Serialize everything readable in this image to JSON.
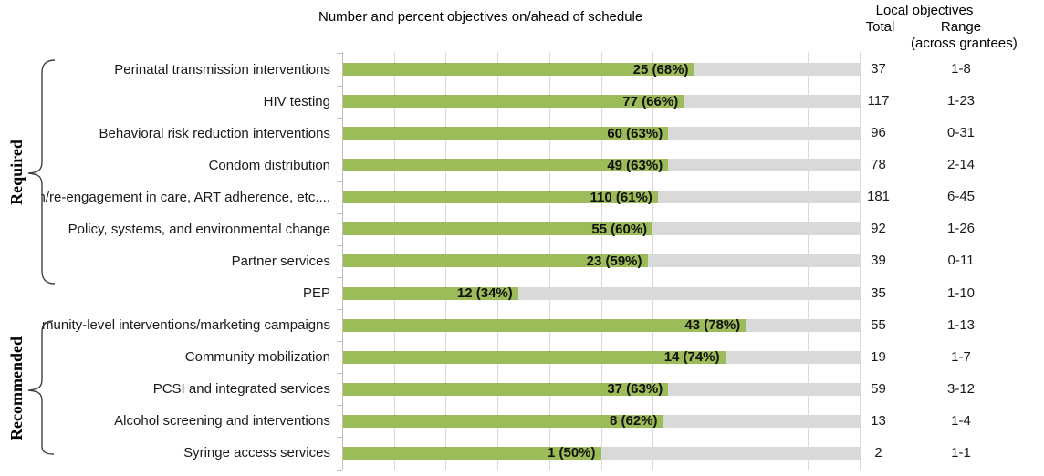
{
  "legend": {
    "label": "Number and percent objectives on/ahead of schedule",
    "swatch_color": "#9cbb59"
  },
  "right_columns": {
    "group_header": "Local objectives",
    "total_header": "Total",
    "range_header": "Range",
    "range_subheader": "(across grantees)"
  },
  "groups": [
    {
      "label": "Required",
      "covers_rows": [
        0,
        6
      ]
    },
    {
      "label": "Recommended",
      "covers_rows": [
        8,
        12
      ]
    }
  ],
  "chart_data": {
    "type": "bar",
    "orientation": "horizontal",
    "title": "",
    "legend": [
      "Number and percent objectives on/ahead of schedule"
    ],
    "xlabel": "",
    "ylabel": "",
    "xlim_pct": [
      0,
      100
    ],
    "gridline_step_pct": 10,
    "grid": true,
    "bar_color": "#9cbb59",
    "track_color": "#d9d9d9",
    "categories": [
      "Perinatal transmission interventions",
      "HIV testing",
      "Behavioral risk reduction interventions",
      "Condom distribution",
      "Retention/re-engagement in care, ART adherence, etc....",
      "Policy, systems, and environmental change",
      "Partner services",
      "PEP",
      "Community-level interventions/marketing campaigns",
      "Community mobilization",
      "PCSI and integrated services",
      "Alcohol screening and interventions",
      "Syringe access services"
    ],
    "rows": [
      {
        "category": "Perinatal transmission interventions",
        "group": "Required",
        "count": 25,
        "pct": 68,
        "bar_label": "25 (68%)",
        "total": "37",
        "range": "1-8"
      },
      {
        "category": "HIV testing",
        "group": "Required",
        "count": 77,
        "pct": 66,
        "bar_label": "77 (66%)",
        "total": "117",
        "range": "1-23"
      },
      {
        "category": "Behavioral risk reduction interventions",
        "group": "Required",
        "count": 60,
        "pct": 63,
        "bar_label": "60 (63%)",
        "total": "96",
        "range": "0-31"
      },
      {
        "category": "Condom distribution",
        "group": "Required",
        "count": 49,
        "pct": 63,
        "bar_label": "49 (63%)",
        "total": "78",
        "range": "2-14"
      },
      {
        "category": "Retention/re-engagement in care, ART adherence, etc....",
        "group": "Required",
        "count": 110,
        "pct": 61,
        "bar_label": "110 (61%)",
        "total": "181",
        "range": "6-45"
      },
      {
        "category": "Policy, systems, and environmental change",
        "group": "Required",
        "count": 55,
        "pct": 60,
        "bar_label": "55 (60%)",
        "total": "92",
        "range": "1-26"
      },
      {
        "category": "Partner services",
        "group": "Required",
        "count": 23,
        "pct": 59,
        "bar_label": "23 (59%)",
        "total": "39",
        "range": "0-11"
      },
      {
        "category": "PEP",
        "group": "",
        "count": 12,
        "pct": 34,
        "bar_label": "12 (34%)",
        "total": "35",
        "range": "1-10"
      },
      {
        "category": "Community-level interventions/marketing campaigns",
        "group": "Recommended",
        "count": 43,
        "pct": 78,
        "bar_label": "43 (78%)",
        "total": "55",
        "range": "1-13"
      },
      {
        "category": "Community mobilization",
        "group": "Recommended",
        "count": 14,
        "pct": 74,
        "bar_label": "14 (74%)",
        "total": "19",
        "range": "1-7"
      },
      {
        "category": "PCSI and integrated services",
        "group": "Recommended",
        "count": 37,
        "pct": 63,
        "bar_label": "37 (63%)",
        "total": "59",
        "range": "3-12"
      },
      {
        "category": "Alcohol screening and interventions",
        "group": "Recommended",
        "count": 8,
        "pct": 62,
        "bar_label": "8 (62%)",
        "total": "13",
        "range": "1-4"
      },
      {
        "category": "Syringe access services",
        "group": "Recommended",
        "count": 1,
        "pct": 50,
        "bar_label": "1 (50%)",
        "total": "2",
        "range": "1-1"
      }
    ]
  }
}
